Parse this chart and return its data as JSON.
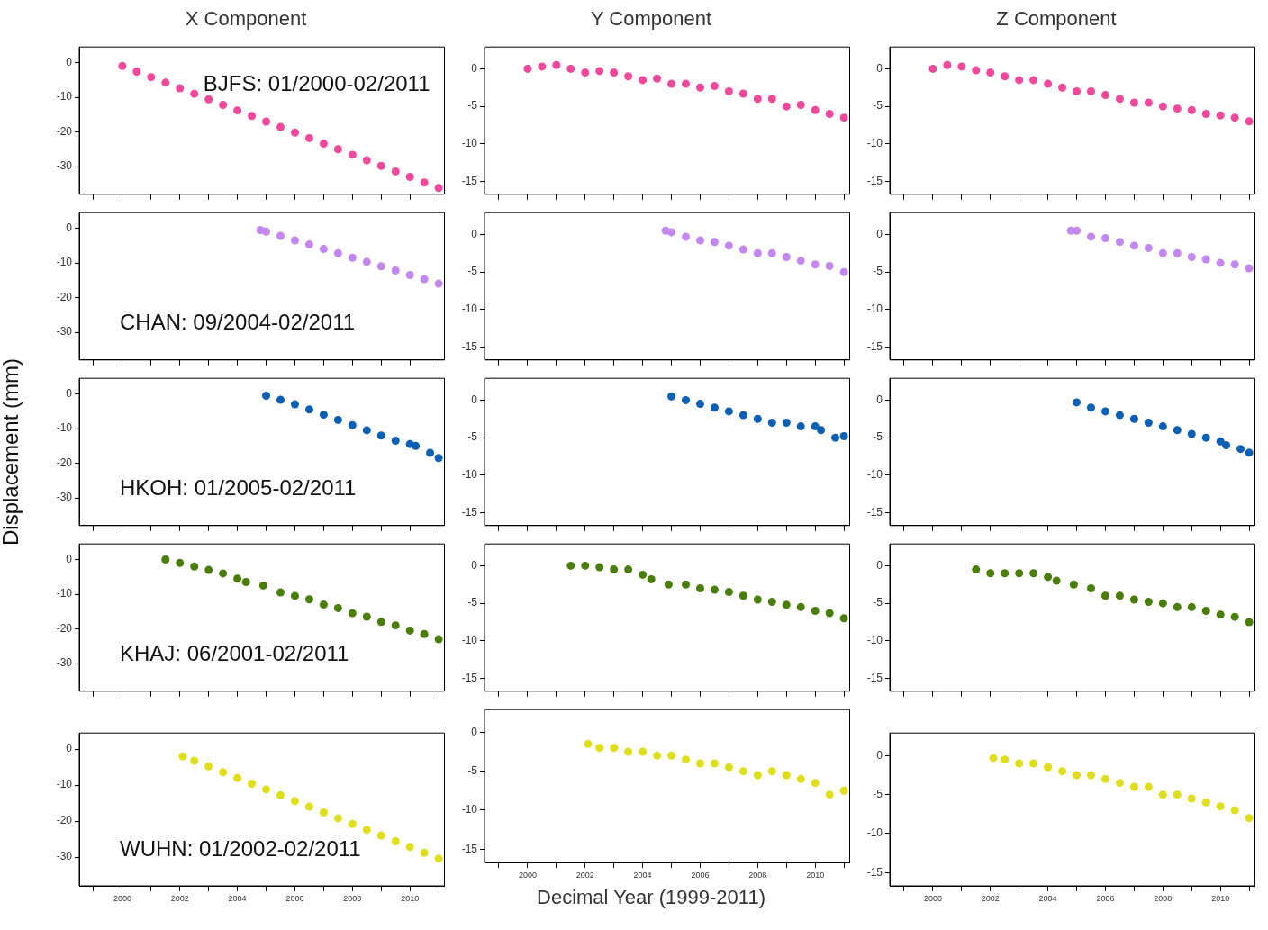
{
  "chart_data": [
    {
      "type": "scatter",
      "title": "X Component",
      "annotations": [
        "BJFS: 01/2000-02/2011"
      ],
      "color": "#f0489a",
      "x": [
        2000,
        2000.5,
        2001,
        2001.5,
        2002,
        2002.5,
        2003,
        2003.5,
        2004,
        2004.5,
        2005,
        2005.5,
        2006,
        2006.5,
        2007,
        2007.5,
        2008,
        2008.5,
        2009,
        2009.5,
        2010,
        2010.5,
        2011
      ],
      "values": [
        -1,
        -2.6,
        -4.2,
        -5.8,
        -7.4,
        -9,
        -10.6,
        -12.2,
        -13.8,
        -15.4,
        -17,
        -18.6,
        -20.2,
        -21.8,
        -23.4,
        -25,
        -26.6,
        -28.2,
        -29.8,
        -31.4,
        -33,
        -34.6,
        -36.2
      ],
      "xlim": [
        1998.5,
        2011.2
      ],
      "xticks": [
        {
          "value": 1999,
          "label": null
        },
        2000,
        {
          "value": 2001,
          "label": null
        },
        2002,
        {
          "value": 2003,
          "label": null
        },
        2004,
        {
          "value": 2005,
          "label": null
        },
        2006,
        {
          "value": 2007,
          "label": null
        },
        2008,
        {
          "value": 2009,
          "label": null
        },
        2010,
        {
          "value": 2011,
          "label": null
        }
      ],
      "ylim": [
        -38,
        4.5
      ],
      "yticks": [
        0,
        -10,
        -20,
        -30
      ],
      "marker": "circle",
      "grid": false,
      "legend": false,
      "tick_labels": "y"
    },
    {
      "type": "scatter",
      "title": "Y Component",
      "color": "#f0489a",
      "x": [
        2000,
        2000.5,
        2001,
        2001.5,
        2002,
        2002.5,
        2003,
        2003.5,
        2004,
        2004.5,
        2005,
        2005.5,
        2006,
        2006.5,
        2007,
        2007.5,
        2008,
        2008.5,
        2009,
        2009.5,
        2010,
        2010.5,
        2011
      ],
      "values": [
        0,
        0.3,
        0.5,
        0,
        -0.5,
        -0.3,
        -0.5,
        -1,
        -1.5,
        -1.3,
        -2,
        -2,
        -2.5,
        -2.3,
        -3,
        -3.3,
        -4,
        -4,
        -5,
        -4.8,
        -5.5,
        -6,
        -6.5
      ],
      "xlim": [
        1998.5,
        2011.2
      ],
      "xticks": [
        {
          "value": 1999,
          "label": null
        },
        2000,
        {
          "value": 2001,
          "label": null
        },
        2002,
        {
          "value": 2003,
          "label": null
        },
        2004,
        {
          "value": 2005,
          "label": null
        },
        2006,
        {
          "value": 2007,
          "label": null
        },
        2008,
        {
          "value": 2009,
          "label": null
        },
        2010,
        {
          "value": 2011,
          "label": null
        }
      ],
      "ylim": [
        -16.7,
        2.9
      ],
      "yticks": [
        0,
        -5,
        -10,
        -15
      ],
      "marker": "circle",
      "grid": false,
      "legend": false,
      "tick_labels": "y"
    },
    {
      "type": "scatter",
      "title": "Z Component",
      "color": "#f0489a",
      "x": [
        2000,
        2000.5,
        2001,
        2001.5,
        2002,
        2002.5,
        2003,
        2003.5,
        2004,
        2004.5,
        2005,
        2005.5,
        2006,
        2006.5,
        2007,
        2007.5,
        2008,
        2008.5,
        2009,
        2009.5,
        2010,
        2010.5,
        2011
      ],
      "values": [
        0,
        0.5,
        0.3,
        -0.2,
        -0.5,
        -1,
        -1.5,
        -1.5,
        -2,
        -2.5,
        -3,
        -3,
        -3.5,
        -4,
        -4.5,
        -4.5,
        -5,
        -5.3,
        -5.5,
        -6,
        -6.2,
        -6.5,
        -7
      ],
      "xlim": [
        1998.5,
        2011.2
      ],
      "xticks": [
        {
          "value": 1999,
          "label": null
        },
        2000,
        {
          "value": 2001,
          "label": null
        },
        2002,
        {
          "value": 2003,
          "label": null
        },
        2004,
        {
          "value": 2005,
          "label": null
        },
        2006,
        {
          "value": 2007,
          "label": null
        },
        2008,
        {
          "value": 2009,
          "label": null
        },
        2010,
        {
          "value": 2011,
          "label": null
        }
      ],
      "ylim": [
        -16.7,
        2.9
      ],
      "yticks": [
        0,
        -5,
        -10,
        -15
      ],
      "marker": "circle",
      "grid": false,
      "legend": false,
      "tick_labels": "y"
    },
    {
      "type": "scatter",
      "annotations": [
        "CHAN: 09/2004-02/2011"
      ],
      "color": "#c387f0",
      "x": [
        2004.8,
        2005,
        2005.5,
        2006,
        2006.5,
        2007,
        2007.5,
        2008,
        2008.5,
        2009,
        2009.5,
        2010,
        2010.5,
        2011
      ],
      "values": [
        -0.5,
        -1,
        -2.2,
        -3.5,
        -4.7,
        -6,
        -7.2,
        -8.5,
        -9.7,
        -11,
        -12.2,
        -13.5,
        -14.7,
        -16
      ],
      "xlim": [
        1998.5,
        2011.2
      ],
      "xticks": [
        {
          "value": 1999,
          "label": null
        },
        2000,
        {
          "value": 2001,
          "label": null
        },
        2002,
        {
          "value": 2003,
          "label": null
        },
        2004,
        {
          "value": 2005,
          "label": null
        },
        2006,
        {
          "value": 2007,
          "label": null
        },
        2008,
        {
          "value": 2009,
          "label": null
        },
        2010,
        {
          "value": 2011,
          "label": null
        }
      ],
      "ylim": [
        -38,
        4.5
      ],
      "yticks": [
        0,
        -10,
        -20,
        -30
      ],
      "marker": "circle",
      "grid": false,
      "legend": false,
      "tick_labels": "y"
    },
    {
      "type": "scatter",
      "color": "#c387f0",
      "x": [
        2004.8,
        2005,
        2005.5,
        2006,
        2006.5,
        2007,
        2007.5,
        2008,
        2008.5,
        2009,
        2009.5,
        2010,
        2010.5,
        2011
      ],
      "values": [
        0.5,
        0.3,
        -0.3,
        -0.8,
        -1,
        -1.5,
        -2,
        -2.5,
        -2.5,
        -3,
        -3.5,
        -4,
        -4.2,
        -5
      ],
      "xlim": [
        1998.5,
        2011.2
      ],
      "xticks": [
        {
          "value": 1999,
          "label": null
        },
        2000,
        {
          "value": 2001,
          "label": null
        },
        2002,
        {
          "value": 2003,
          "label": null
        },
        2004,
        {
          "value": 2005,
          "label": null
        },
        2006,
        {
          "value": 2007,
          "label": null
        },
        2008,
        {
          "value": 2009,
          "label": null
        },
        2010,
        {
          "value": 2011,
          "label": null
        }
      ],
      "ylim": [
        -16.7,
        2.9
      ],
      "yticks": [
        0,
        -5,
        -10,
        -15
      ],
      "marker": "circle",
      "grid": false,
      "legend": false,
      "tick_labels": "y"
    },
    {
      "type": "scatter",
      "color": "#c387f0",
      "x": [
        2004.8,
        2005,
        2005.5,
        2006,
        2006.5,
        2007,
        2007.5,
        2008,
        2008.5,
        2009,
        2009.5,
        2010,
        2010.5,
        2011
      ],
      "values": [
        0.5,
        0.5,
        -0.3,
        -0.5,
        -1,
        -1.5,
        -1.8,
        -2.5,
        -2.5,
        -3,
        -3.3,
        -3.8,
        -4,
        -4.5
      ],
      "xlim": [
        1998.5,
        2011.2
      ],
      "xticks": [
        {
          "value": 1999,
          "label": null
        },
        2000,
        {
          "value": 2001,
          "label": null
        },
        2002,
        {
          "value": 2003,
          "label": null
        },
        2004,
        {
          "value": 2005,
          "label": null
        },
        2006,
        {
          "value": 2007,
          "label": null
        },
        2008,
        {
          "value": 2009,
          "label": null
        },
        2010,
        {
          "value": 2011,
          "label": null
        }
      ],
      "ylim": [
        -16.7,
        2.9
      ],
      "yticks": [
        0,
        -5,
        -10,
        -15
      ],
      "marker": "circle",
      "grid": false,
      "legend": false,
      "tick_labels": "y"
    },
    {
      "type": "scatter",
      "ylabel": "Displacement (mm)",
      "annotations": [
        "HKOH: 01/2005-02/2011"
      ],
      "color": "#0b5fb4",
      "x": [
        2005,
        2005.5,
        2006,
        2006.5,
        2007,
        2007.5,
        2008,
        2008.5,
        2009,
        2009.5,
        2010,
        2010.2,
        2010.7,
        2011
      ],
      "values": [
        -0.5,
        -1.7,
        -3,
        -4.5,
        -6,
        -7.5,
        -9,
        -10.5,
        -12,
        -13.5,
        -14.5,
        -15,
        -17,
        -18.5
      ],
      "xlim": [
        1998.5,
        2011.2
      ],
      "xticks": [
        {
          "value": 1999,
          "label": null
        },
        2000,
        {
          "value": 2001,
          "label": null
        },
        2002,
        {
          "value": 2003,
          "label": null
        },
        2004,
        {
          "value": 2005,
          "label": null
        },
        2006,
        {
          "value": 2007,
          "label": null
        },
        2008,
        {
          "value": 2009,
          "label": null
        },
        2010,
        {
          "value": 2011,
          "label": null
        }
      ],
      "ylim": [
        -38,
        4.5
      ],
      "yticks": [
        0,
        -10,
        -20,
        -30
      ],
      "marker": "circle",
      "grid": false,
      "legend": false,
      "tick_labels": "y"
    },
    {
      "type": "scatter",
      "color": "#0b5fb4",
      "x": [
        2005,
        2005.5,
        2006,
        2006.5,
        2007,
        2007.5,
        2008,
        2008.5,
        2009,
        2009.5,
        2010,
        2010.2,
        2010.7,
        2011
      ],
      "values": [
        0.5,
        0,
        -0.5,
        -1,
        -1.5,
        -2,
        -2.5,
        -3,
        -3,
        -3.5,
        -3.5,
        -4,
        -5,
        -4.8
      ],
      "xlim": [
        1998.5,
        2011.2
      ],
      "xticks": [
        {
          "value": 1999,
          "label": null
        },
        2000,
        {
          "value": 2001,
          "label": null
        },
        2002,
        {
          "value": 2003,
          "label": null
        },
        2004,
        {
          "value": 2005,
          "label": null
        },
        2006,
        {
          "value": 2007,
          "label": null
        },
        2008,
        {
          "value": 2009,
          "label": null
        },
        2010,
        {
          "value": 2011,
          "label": null
        }
      ],
      "ylim": [
        -16.7,
        2.9
      ],
      "yticks": [
        0,
        -5,
        -10,
        -15
      ],
      "marker": "circle",
      "grid": false,
      "legend": false,
      "tick_labels": "y"
    },
    {
      "type": "scatter",
      "color": "#0b5fb4",
      "x": [
        2005,
        2005.5,
        2006,
        2006.5,
        2007,
        2007.5,
        2008,
        2008.5,
        2009,
        2009.5,
        2010,
        2010.2,
        2010.7,
        2011
      ],
      "values": [
        -0.3,
        -1,
        -1.5,
        -2,
        -2.5,
        -3,
        -3.5,
        -4,
        -4.5,
        -5,
        -5.5,
        -6,
        -6.5,
        -7
      ],
      "xlim": [
        1998.5,
        2011.2
      ],
      "xticks": [
        {
          "value": 1999,
          "label": null
        },
        2000,
        {
          "value": 2001,
          "label": null
        },
        2002,
        {
          "value": 2003,
          "label": null
        },
        2004,
        {
          "value": 2005,
          "label": null
        },
        2006,
        {
          "value": 2007,
          "label": null
        },
        2008,
        {
          "value": 2009,
          "label": null
        },
        2010,
        {
          "value": 2011,
          "label": null
        }
      ],
      "ylim": [
        -16.7,
        2.9
      ],
      "yticks": [
        0,
        -5,
        -10,
        -15
      ],
      "marker": "circle",
      "grid": false,
      "legend": false,
      "tick_labels": "y"
    },
    {
      "type": "scatter",
      "annotations": [
        "KHAJ: 06/2001-02/2011"
      ],
      "color": "#4a7d0a",
      "x": [
        2001.5,
        2002,
        2002.5,
        2003,
        2003.5,
        2004,
        2004.3,
        2004.9,
        2005.5,
        2006,
        2006.5,
        2007,
        2007.5,
        2008,
        2008.5,
        2009,
        2009.5,
        2010,
        2010.5,
        2011
      ],
      "values": [
        0,
        -1,
        -2,
        -3,
        -4,
        -5.5,
        -6.5,
        -7.5,
        -9.5,
        -10.5,
        -11.5,
        -13,
        -14,
        -15.5,
        -16.5,
        -18,
        -19,
        -20.5,
        -21.5,
        -23
      ],
      "xlim": [
        1998.5,
        2011.2
      ],
      "xticks": [
        {
          "value": 1999,
          "label": null
        },
        2000,
        {
          "value": 2001,
          "label": null
        },
        2002,
        {
          "value": 2003,
          "label": null
        },
        2004,
        {
          "value": 2005,
          "label": null
        },
        2006,
        {
          "value": 2007,
          "label": null
        },
        2008,
        {
          "value": 2009,
          "label": null
        },
        2010,
        {
          "value": 2011,
          "label": null
        }
      ],
      "ylim": [
        -38,
        4.5
      ],
      "yticks": [
        0,
        -10,
        -20,
        -30
      ],
      "marker": "circle",
      "grid": false,
      "legend": false,
      "tick_labels": "y"
    },
    {
      "type": "scatter",
      "color": "#4a7d0a",
      "x": [
        2001.5,
        2002,
        2002.5,
        2003,
        2003.5,
        2004,
        2004.3,
        2004.9,
        2005.5,
        2006,
        2006.5,
        2007,
        2007.5,
        2008,
        2008.5,
        2009,
        2009.5,
        2010,
        2010.5,
        2011
      ],
      "values": [
        0,
        0,
        -0.2,
        -0.5,
        -0.5,
        -1.2,
        -1.8,
        -2.5,
        -2.5,
        -3,
        -3.2,
        -3.5,
        -4,
        -4.5,
        -4.8,
        -5.2,
        -5.5,
        -6,
        -6.3,
        -7
      ],
      "xlim": [
        1998.5,
        2011.2
      ],
      "xticks": [
        {
          "value": 1999,
          "label": null
        },
        2000,
        {
          "value": 2001,
          "label": null
        },
        2002,
        {
          "value": 2003,
          "label": null
        },
        2004,
        {
          "value": 2005,
          "label": null
        },
        2006,
        {
          "value": 2007,
          "label": null
        },
        2008,
        {
          "value": 2009,
          "label": null
        },
        2010,
        {
          "value": 2011,
          "label": null
        }
      ],
      "ylim": [
        -16.7,
        2.9
      ],
      "yticks": [
        0,
        -5,
        -10,
        -15
      ],
      "marker": "circle",
      "grid": false,
      "legend": false,
      "tick_labels": "y"
    },
    {
      "type": "scatter",
      "color": "#4a7d0a",
      "x": [
        2001.5,
        2002,
        2002.5,
        2003,
        2003.5,
        2004,
        2004.3,
        2004.9,
        2005.5,
        2006,
        2006.5,
        2007,
        2007.5,
        2008,
        2008.5,
        2009,
        2009.5,
        2010,
        2010.5,
        2011
      ],
      "values": [
        -0.5,
        -1,
        -1,
        -1,
        -1,
        -1.5,
        -2,
        -2.5,
        -3,
        -4,
        -4,
        -4.5,
        -4.8,
        -5,
        -5.5,
        -5.5,
        -6,
        -6.5,
        -6.8,
        -7.5
      ],
      "xlim": [
        1998.5,
        2011.2
      ],
      "xticks": [
        {
          "value": 1999,
          "label": null
        },
        2000,
        {
          "value": 2001,
          "label": null
        },
        2002,
        {
          "value": 2003,
          "label": null
        },
        2004,
        {
          "value": 2005,
          "label": null
        },
        2006,
        {
          "value": 2007,
          "label": null
        },
        2008,
        {
          "value": 2009,
          "label": null
        },
        2010,
        {
          "value": 2011,
          "label": null
        }
      ],
      "ylim": [
        -16.7,
        2.9
      ],
      "yticks": [
        0,
        -5,
        -10,
        -15
      ],
      "marker": "circle",
      "grid": false,
      "legend": false,
      "tick_labels": "y"
    },
    {
      "type": "scatter",
      "annotations": [
        "WUHN: 01/2002-02/2011"
      ],
      "color": "#dede1a",
      "x": [
        2002.1,
        2002.5,
        2003,
        2003.5,
        2004,
        2004.5,
        2005,
        2005.5,
        2006,
        2006.5,
        2007,
        2007.5,
        2008,
        2008.5,
        2009,
        2009.5,
        2010,
        2010.5,
        2011
      ],
      "values": [
        -2,
        -3.2,
        -4.8,
        -6.4,
        -8,
        -9.6,
        -11.2,
        -12.8,
        -14.4,
        -16,
        -17.6,
        -19.2,
        -20.8,
        -22.4,
        -24,
        -25.6,
        -27.2,
        -28.8,
        -30.4
      ],
      "xlim": [
        1998.5,
        2011.2
      ],
      "xticks": [
        {
          "value": 1999,
          "label": null
        },
        2000,
        {
          "value": 2001,
          "label": null
        },
        2002,
        {
          "value": 2003,
          "label": null
        },
        2004,
        {
          "value": 2005,
          "label": null
        },
        2006,
        {
          "value": 2007,
          "label": null
        },
        2008,
        {
          "value": 2009,
          "label": null
        },
        2010,
        {
          "value": 2011,
          "label": null
        }
      ],
      "ylim": [
        -38,
        4.5
      ],
      "yticks": [
        0,
        -10,
        -20,
        -30
      ],
      "marker": "circle",
      "grid": false,
      "legend": false
    },
    {
      "type": "scatter",
      "xlabel": "Decimal Year (1999-2011)",
      "color": "#dede1a",
      "x": [
        2002.1,
        2002.5,
        2003,
        2003.5,
        2004,
        2004.5,
        2005,
        2005.5,
        2006,
        2006.5,
        2007,
        2007.5,
        2008,
        2008.5,
        2009,
        2009.5,
        2010,
        2010.5,
        2011
      ],
      "values": [
        -1.5,
        -2,
        -2,
        -2.5,
        -2.5,
        -3,
        -3,
        -3.5,
        -4,
        -4,
        -4.5,
        -5,
        -5.5,
        -5,
        -5.5,
        -6,
        -6.5,
        -8,
        -7.5
      ],
      "xlim": [
        1998.5,
        2011.2
      ],
      "xticks": [
        {
          "value": 1999,
          "label": null
        },
        2000,
        {
          "value": 2001,
          "label": null
        },
        2002,
        {
          "value": 2003,
          "label": null
        },
        2004,
        {
          "value": 2005,
          "label": null
        },
        2006,
        {
          "value": 2007,
          "label": null
        },
        2008,
        {
          "value": 2009,
          "label": null
        },
        2010,
        {
          "value": 2011,
          "label": null
        }
      ],
      "ylim": [
        -16.7,
        2.9
      ],
      "yticks": [
        0,
        -5,
        -10,
        -15
      ],
      "marker": "circle",
      "grid": false,
      "legend": false
    },
    {
      "type": "scatter",
      "color": "#dede1a",
      "x": [
        2002.1,
        2002.5,
        2003,
        2003.5,
        2004,
        2004.5,
        2005,
        2005.5,
        2006,
        2006.5,
        2007,
        2007.5,
        2008,
        2008.5,
        2009,
        2009.5,
        2010,
        2010.5,
        2011
      ],
      "values": [
        -0.3,
        -0.5,
        -1,
        -1,
        -1.5,
        -2,
        -2.5,
        -2.5,
        -3,
        -3.5,
        -4,
        -4,
        -5,
        -5,
        -5.5,
        -6,
        -6.5,
        -7,
        -8
      ],
      "xlim": [
        1998.5,
        2011.2
      ],
      "xticks": [
        {
          "value": 1999,
          "label": null
        },
        2000,
        {
          "value": 2001,
          "label": null
        },
        2002,
        {
          "value": 2003,
          "label": null
        },
        2004,
        {
          "value": 2005,
          "label": null
        },
        2006,
        {
          "value": 2007,
          "label": null
        },
        2008,
        {
          "value": 2009,
          "label": null
        },
        2010,
        {
          "value": 2011,
          "label": null
        }
      ],
      "ylim": [
        -16.7,
        2.9
      ],
      "yticks": [
        0,
        -5,
        -10,
        -15
      ],
      "marker": "circle",
      "grid": false,
      "legend": false
    }
  ]
}
